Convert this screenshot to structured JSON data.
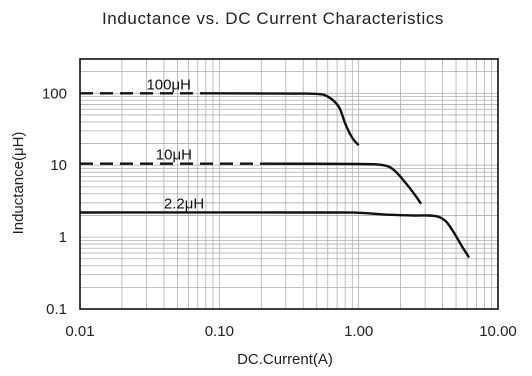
{
  "chart_data": {
    "type": "line",
    "title": "Inductance vs. DC Current Characteristics",
    "xlabel": "DC.Current(A)",
    "ylabel": "Inductance(μH)",
    "xscale": "log",
    "yscale": "log",
    "xlim": [
      0.01,
      10
    ],
    "ylim": [
      0.1,
      300
    ],
    "x_ticks": [
      0.01,
      0.1,
      1,
      10
    ],
    "x_tick_labels": [
      "0.01",
      "0.10",
      "1.00",
      "10.00"
    ],
    "y_ticks": [
      0.1,
      1,
      10,
      100
    ],
    "y_tick_labels": [
      "0.1",
      "1",
      "10",
      "100"
    ],
    "grid": true,
    "series": [
      {
        "name": "100μH",
        "dashed_segment": [
          [
            0.01,
            100
          ],
          [
            0.09,
            100
          ]
        ],
        "points": [
          [
            0.09,
            100
          ],
          [
            0.3,
            99
          ],
          [
            0.5,
            98
          ],
          [
            0.6,
            90
          ],
          [
            0.72,
            65
          ],
          [
            0.8,
            38
          ],
          [
            0.9,
            24
          ],
          [
            1.0,
            19
          ]
        ]
      },
      {
        "name": "10μH",
        "dashed_segment": [
          [
            0.01,
            10.5
          ],
          [
            0.2,
            10.5
          ]
        ],
        "points": [
          [
            0.2,
            10.5
          ],
          [
            1.0,
            10.4
          ],
          [
            1.5,
            10.0
          ],
          [
            1.8,
            8.5
          ],
          [
            2.2,
            5.5
          ],
          [
            2.6,
            3.6
          ],
          [
            2.8,
            2.9
          ]
        ]
      },
      {
        "name": "2.2μH",
        "points": [
          [
            0.01,
            2.2
          ],
          [
            0.5,
            2.2
          ],
          [
            1.0,
            2.18
          ],
          [
            1.6,
            2.05
          ],
          [
            2.5,
            2.0
          ],
          [
            3.2,
            2.0
          ],
          [
            3.8,
            1.9
          ],
          [
            4.3,
            1.6
          ],
          [
            4.9,
            1.1
          ],
          [
            5.5,
            0.75
          ],
          [
            6.2,
            0.52
          ]
        ]
      }
    ],
    "labels": [
      "100μH",
      "10μH",
      "2.2μH"
    ]
  }
}
